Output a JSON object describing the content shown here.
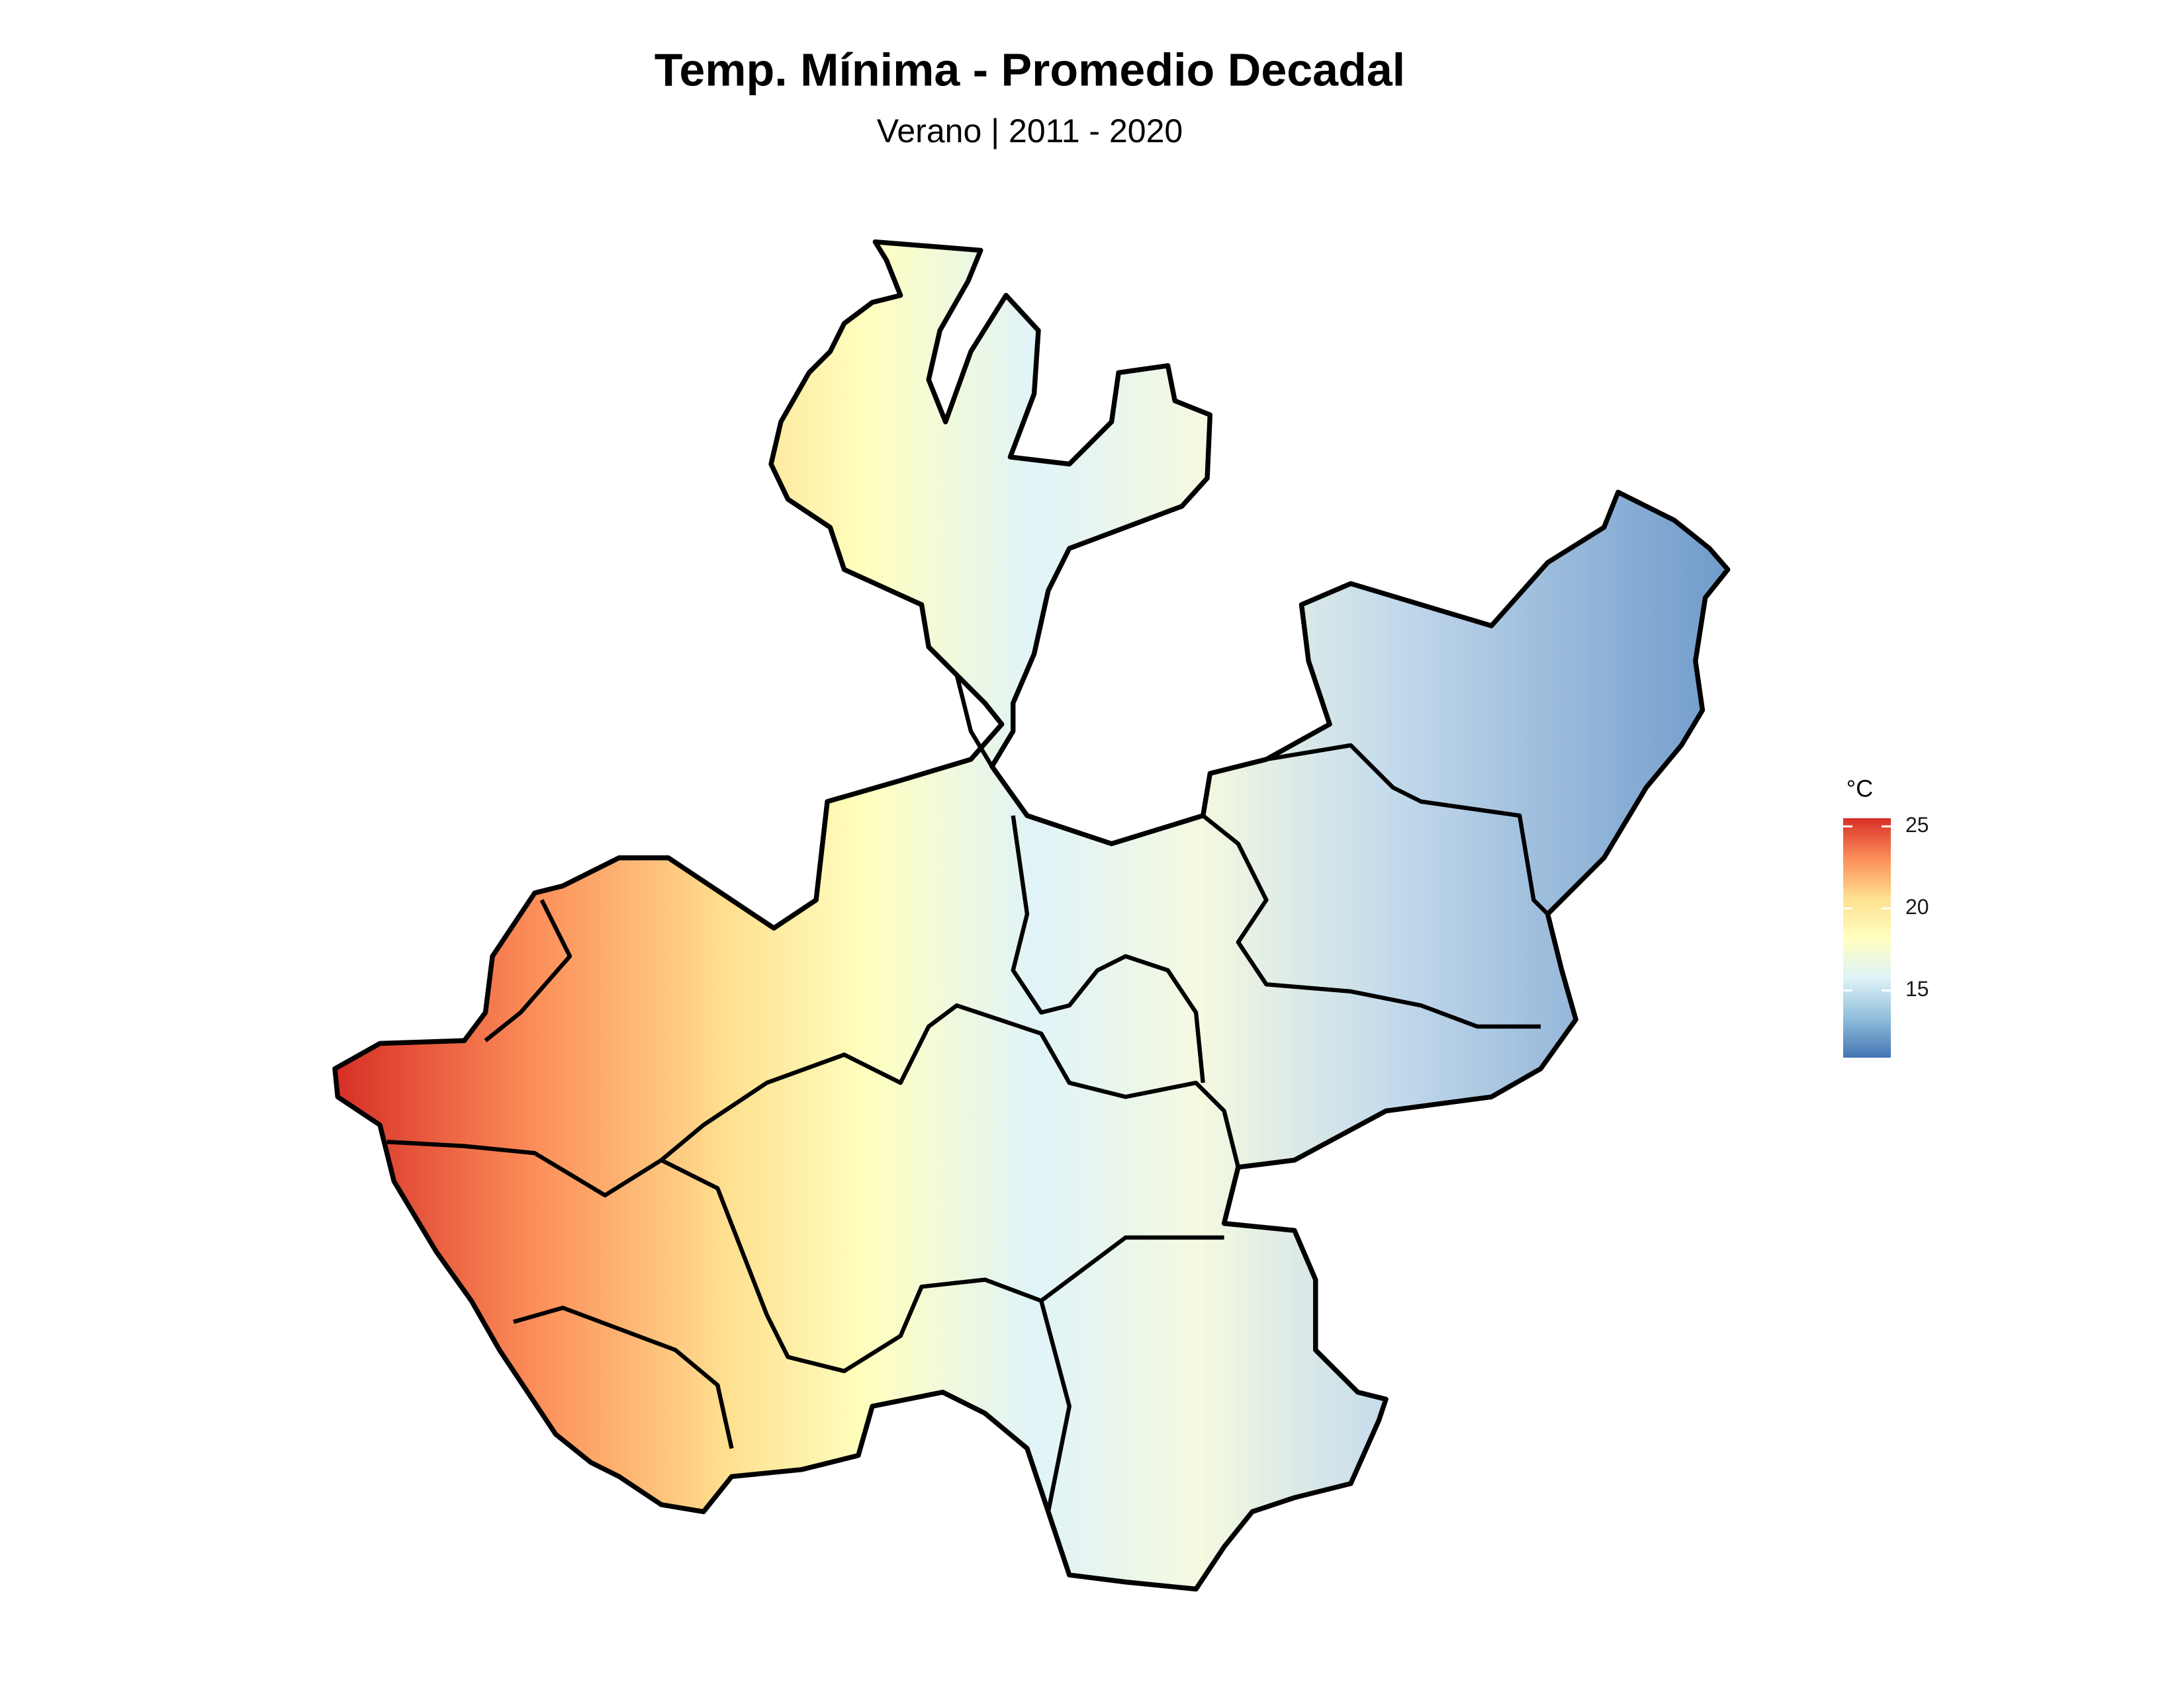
{
  "chart_data": {
    "type": "map",
    "title": "Temp. Mínima - Promedio Decadal",
    "subtitle": "Verano | 2011 - 2020",
    "legend_title": "°C",
    "clim": [
      10.9,
      25.5
    ],
    "cticks": [
      15,
      20,
      25
    ],
    "colors": [
      "#4575b4",
      "#91bfdb",
      "#e0f3f8",
      "#ffffbf",
      "#fee090",
      "#fc8d59",
      "#d73027"
    ]
  }
}
